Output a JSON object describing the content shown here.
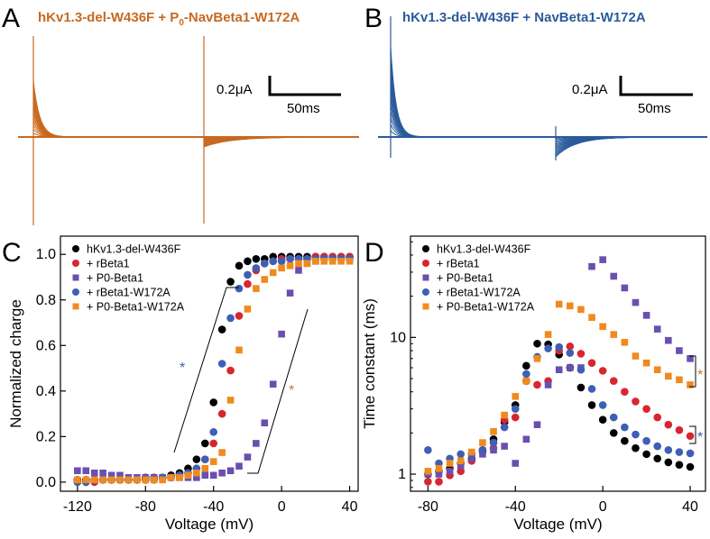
{
  "figure": {
    "panels": {
      "A": {
        "letter": "A",
        "title_main": "hKv1.3-del-W436F + P",
        "title_sub": "0",
        "title_rest": "-NavBeta1-W172A",
        "color": "#c8691f",
        "scale_current": "0.2μA",
        "scale_time": "50ms"
      },
      "B": {
        "letter": "B",
        "title": "hKv1.3-del-W436F + NavBeta1-W172A",
        "color": "#2a5b9a",
        "scale_current": "0.2μA",
        "scale_time": "50ms"
      },
      "C": {
        "letter": "C"
      },
      "D": {
        "letter": "D"
      }
    },
    "significance_mark": "*"
  },
  "chart_data": [
    {
      "panel": "C",
      "type": "scatter",
      "xlabel": "Voltage (mV)",
      "ylabel": "Normalized charge",
      "xlim": [
        -130,
        45
      ],
      "ylim": [
        -0.04,
        1.08
      ],
      "xticks": [
        -120,
        -80,
        -40,
        0,
        40
      ],
      "yticks": [
        0.0,
        0.2,
        0.4,
        0.6,
        0.8,
        1.0
      ],
      "legend_position": "top-left",
      "x": [
        -120,
        -115,
        -110,
        -105,
        -100,
        -95,
        -90,
        -85,
        -80,
        -75,
        -70,
        -65,
        -60,
        -55,
        -50,
        -45,
        -40,
        -35,
        -30,
        -25,
        -20,
        -15,
        -10,
        -5,
        0,
        5,
        10,
        15,
        20,
        25,
        30,
        35,
        40
      ],
      "series": [
        {
          "name": "hKv1.3-del-W436F",
          "color": "#000000",
          "marker": "circle",
          "values": [
            0.01,
            0.01,
            0.01,
            0.01,
            0.01,
            0.01,
            0.01,
            0.01,
            0.02,
            0.02,
            0.02,
            0.03,
            0.04,
            0.06,
            0.1,
            0.17,
            0.35,
            0.67,
            0.88,
            0.95,
            0.97,
            0.98,
            0.98,
            0.99,
            0.99,
            0.99,
            0.99,
            0.99,
            0.99,
            0.99,
            0.99,
            0.99,
            0.99
          ]
        },
        {
          "name": "+ rBeta1",
          "color": "#d7262f",
          "marker": "circle",
          "values": [
            0.0,
            0.0,
            0.0,
            0.01,
            0.01,
            0.01,
            0.01,
            0.01,
            0.01,
            0.02,
            0.02,
            0.02,
            0.03,
            0.04,
            0.06,
            0.1,
            0.17,
            0.3,
            0.49,
            0.73,
            0.87,
            0.93,
            0.96,
            0.97,
            0.98,
            0.98,
            0.98,
            0.98,
            0.99,
            0.99,
            0.99,
            0.99,
            0.99
          ]
        },
        {
          "name": "+ P0-Beta1",
          "color": "#6a4fb0",
          "marker": "square",
          "values": [
            0.05,
            0.05,
            0.04,
            0.04,
            0.03,
            0.03,
            0.02,
            0.02,
            0.02,
            0.02,
            0.02,
            0.02,
            0.02,
            0.02,
            0.02,
            0.03,
            0.03,
            0.04,
            0.05,
            0.07,
            0.11,
            0.17,
            0.26,
            0.43,
            0.65,
            0.83,
            0.93,
            0.96,
            0.97,
            0.98,
            0.98,
            0.98,
            0.98
          ]
        },
        {
          "name": "+ rBeta1-W172A",
          "color": "#3d5fb4",
          "marker": "circle",
          "values": [
            0.0,
            0.0,
            0.01,
            0.01,
            0.01,
            0.01,
            0.01,
            0.01,
            0.01,
            0.01,
            0.02,
            0.02,
            0.03,
            0.04,
            0.06,
            0.1,
            0.22,
            0.52,
            0.72,
            0.85,
            0.91,
            0.94,
            0.96,
            0.97,
            0.97,
            0.98,
            0.98,
            0.98,
            0.98,
            0.98,
            0.98,
            0.98,
            0.98
          ]
        },
        {
          "name": "+ P0-Beta1-W172A",
          "color": "#f08a1e",
          "marker": "square",
          "values": [
            0.01,
            0.01,
            0.01,
            0.01,
            0.01,
            0.01,
            0.01,
            0.01,
            0.01,
            0.01,
            0.01,
            0.02,
            0.02,
            0.03,
            0.04,
            0.06,
            0.09,
            0.13,
            0.36,
            0.58,
            0.76,
            0.85,
            0.89,
            0.92,
            0.94,
            0.95,
            0.96,
            0.96,
            0.97,
            0.97,
            0.97,
            0.97,
            0.97
          ]
        }
      ]
    },
    {
      "panel": "D",
      "type": "scatter",
      "xlabel": "Voltage (mV)",
      "ylabel": "Time constant (ms)",
      "y_scale": "log",
      "xlim": [
        -88,
        47
      ],
      "ylim": [
        0.75,
        55
      ],
      "xticks": [
        -80,
        -40,
        0,
        40
      ],
      "yticks": [
        1,
        10
      ],
      "legend_position": "top-left",
      "x": [
        -80,
        -75,
        -70,
        -65,
        -60,
        -55,
        -50,
        -45,
        -40,
        -35,
        -30,
        -25,
        -20,
        -15,
        -10,
        -5,
        0,
        5,
        10,
        15,
        20,
        25,
        30,
        35,
        40
      ],
      "series": [
        {
          "name": "hKv1.3-del-W436F",
          "color": "#000000",
          "marker": "circle",
          "values": [
            1.0,
            1.05,
            1.1,
            1.2,
            1.3,
            1.5,
            1.8,
            2.4,
            3.2,
            6.2,
            9.0,
            8.9,
            7.5,
            6.0,
            4.3,
            3.2,
            2.5,
            2.0,
            1.75,
            1.55,
            1.4,
            1.3,
            1.22,
            1.17,
            1.13
          ]
        },
        {
          "name": "+ rBeta1",
          "color": "#d7262f",
          "marker": "circle",
          "values": [
            0.88,
            0.88,
            0.98,
            1.05,
            1.25,
            1.45,
            1.55,
            2.5,
            2.6,
            4.8,
            4.5,
            4.8,
            8.0,
            8.6,
            7.6,
            6.5,
            5.7,
            4.8,
            4.0,
            3.4,
            3.0,
            2.6,
            2.3,
            2.1,
            1.9
          ]
        },
        {
          "name": "+ P0-Beta1",
          "color": "#6a4fb0",
          "marker": "square",
          "values": [
            1.0,
            1.0,
            1.05,
            1.15,
            1.3,
            1.4,
            1.5,
            1.6,
            1.2,
            1.8,
            2.3,
            4.5,
            5.8,
            6.0,
            6.0,
            33.0,
            37.0,
            28.0,
            23.0,
            18.0,
            14.5,
            11.5,
            9.5,
            8.0,
            7.0
          ]
        },
        {
          "name": "+ rBeta1-W172A",
          "color": "#3d5fb4",
          "marker": "circle",
          "values": [
            1.5,
            1.2,
            1.3,
            1.4,
            1.4,
            1.5,
            1.7,
            2.2,
            3.0,
            5.4,
            7.2,
            8.3,
            8.5,
            7.7,
            5.8,
            4.2,
            3.2,
            2.6,
            2.2,
            1.95,
            1.75,
            1.6,
            1.5,
            1.45,
            1.42
          ]
        },
        {
          "name": "+ P0-Beta1-W172A",
          "color": "#f08a1e",
          "marker": "square",
          "values": [
            1.05,
            1.1,
            1.2,
            1.25,
            1.45,
            1.7,
            2.05,
            2.7,
            3.7,
            4.8,
            7.0,
            10.5,
            17.5,
            17.0,
            16.0,
            14.0,
            12.0,
            10.5,
            9.2,
            7.3,
            6.5,
            5.8,
            5.2,
            4.9,
            4.5
          ]
        }
      ]
    }
  ]
}
